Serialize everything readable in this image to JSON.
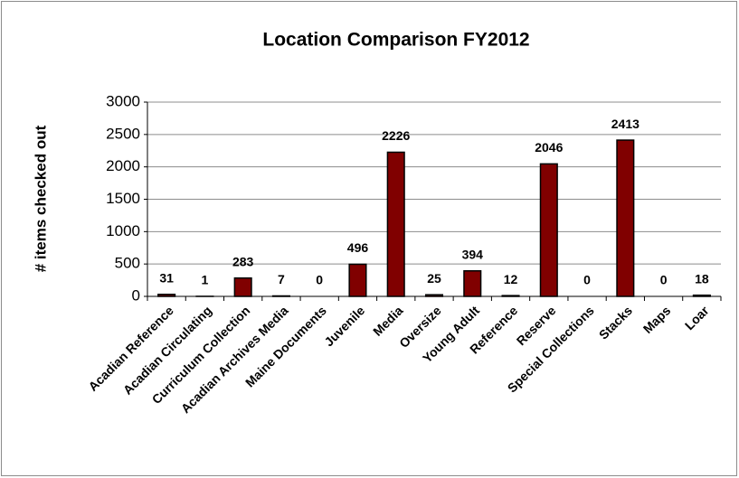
{
  "chart_data": {
    "type": "bar",
    "title": "Location Comparison FY2012",
    "y_label": "# items checked out",
    "categories": [
      "Acadian Reference",
      "Acadian Circulating",
      "Curriculum Collection",
      "Acadian Archives Media",
      "Maine Documents",
      "Juvenile",
      "Media",
      "Oversize",
      "Young Adult",
      "Reference",
      "Reserve",
      "Special Collections",
      "Stacks",
      "Maps",
      "Loar"
    ],
    "values": [
      31,
      1,
      283,
      7,
      0,
      496,
      2226,
      25,
      394,
      12,
      2046,
      0,
      2413,
      0,
      18
    ],
    "color": "#800000",
    "ylim": [
      0,
      3000
    ],
    "yticks": [
      0,
      500,
      1000,
      1500,
      2000,
      2500,
      3000
    ],
    "grid": true,
    "data_labels": true
  }
}
